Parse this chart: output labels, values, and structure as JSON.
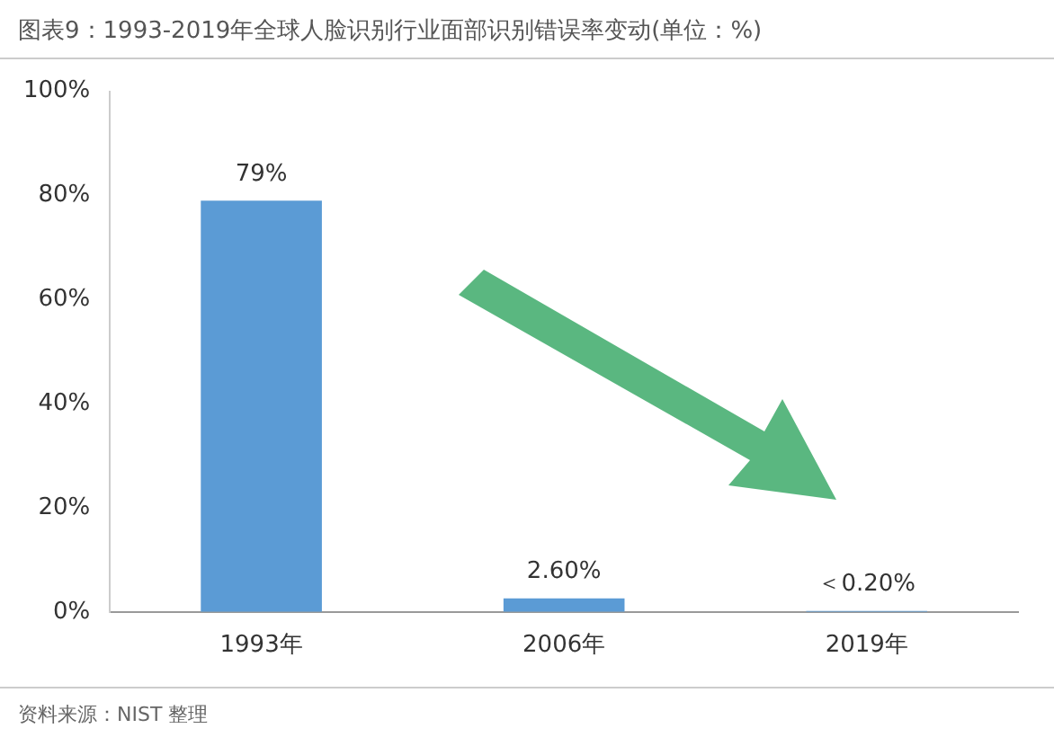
{
  "chart_data": {
    "type": "bar",
    "title": "图表9：1993-2019年全球人脸识别行业面部识别错误率变动(单位：%)",
    "categories": [
      "1993年",
      "2006年",
      "2019年"
    ],
    "values": [
      79,
      2.6,
      0.2
    ],
    "value_labels": [
      "79%",
      "2.60%",
      "＜0.20%"
    ],
    "color": "#5b9bd5",
    "ylim": [
      0,
      100
    ],
    "yticks": [
      {
        "value": 0,
        "label": "0%"
      },
      {
        "value": 20,
        "label": "20%"
      },
      {
        "value": 40,
        "label": "40%"
      },
      {
        "value": 60,
        "label": "60%"
      },
      {
        "value": 80,
        "label": "80%"
      },
      {
        "value": 100,
        "label": "100%"
      }
    ],
    "grid": false,
    "legend": false,
    "annotations": [
      "资料来源：NIST 整理"
    ]
  }
}
